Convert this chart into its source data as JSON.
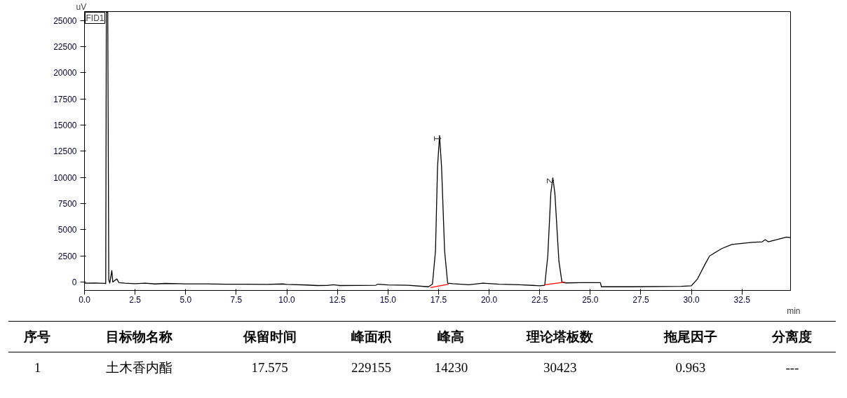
{
  "chart_data": {
    "type": "line",
    "xlabel": "min",
    "ylabel": "uV",
    "xlim": [
      0,
      34.9
    ],
    "ylim": [
      -800,
      25850
    ],
    "xticks": [
      {
        "value": 0,
        "label": "0.0"
      },
      {
        "value": 2.5,
        "label": "2.5"
      },
      {
        "value": 5,
        "label": "5.0"
      },
      {
        "value": 7.5,
        "label": "7.5"
      },
      {
        "value": 10,
        "label": "10.0"
      },
      {
        "value": 12.5,
        "label": "12.5"
      },
      {
        "value": 15,
        "label": "15.0"
      },
      {
        "value": 17.5,
        "label": "17.5"
      },
      {
        "value": 20,
        "label": "20.0"
      },
      {
        "value": 22.5,
        "label": "22.5"
      },
      {
        "value": 25,
        "label": "25.0"
      },
      {
        "value": 27.5,
        "label": "27.5"
      },
      {
        "value": 30,
        "label": "30.0"
      },
      {
        "value": 32.5,
        "label": "32.5"
      }
    ],
    "yticks": [
      0,
      2500,
      5000,
      7500,
      10000,
      12500,
      15000,
      17500,
      20000,
      22500,
      25000
    ],
    "grid": false,
    "series": [
      {
        "color": "#000000",
        "x": [
          0,
          0.5,
          1.0,
          1.05,
          1.08,
          1.15,
          1.2,
          1.25,
          1.35,
          1.4,
          1.6,
          1.7,
          2.0,
          2.5,
          3.0,
          3.5,
          4.0,
          5.0,
          6.0,
          7.0,
          8.0,
          9.0,
          9.8,
          10.0,
          11.0,
          11.5,
          12.0,
          12.3,
          12.6,
          13.5,
          14.4,
          14.5,
          15,
          16,
          17.0,
          17.2,
          17.35,
          17.45,
          17.55,
          17.65,
          17.8,
          17.95,
          18.2,
          19,
          19.7,
          20.5,
          21.5,
          22.5,
          22.75,
          22.9,
          23.05,
          23.15,
          23.25,
          23.45,
          23.6,
          23.8,
          24.5,
          25.5,
          25.55,
          27,
          29.5,
          30.0,
          30.3,
          30.7,
          30.9,
          31.5,
          32.0,
          33.0,
          33.5,
          33.65,
          33.8,
          34.3,
          34.7,
          34.9
        ],
        "values": [
          -100,
          -90,
          -120,
          -150,
          25800,
          25800,
          200,
          -100,
          1100,
          0,
          300,
          -50,
          -100,
          -150,
          -100,
          -180,
          -130,
          -170,
          -170,
          -200,
          -210,
          -220,
          -180,
          -220,
          -280,
          -330,
          -320,
          -250,
          -330,
          -320,
          -300,
          -200,
          -270,
          -300,
          -450,
          -200,
          3000,
          11000,
          14000,
          11000,
          3000,
          -100,
          -150,
          -250,
          -100,
          -200,
          -250,
          -350,
          -300,
          2500,
          8500,
          9950,
          8500,
          2000,
          0,
          -80,
          -50,
          -50,
          -450,
          -450,
          -400,
          -350,
          300,
          1800,
          2500,
          3200,
          3600,
          3800,
          3850,
          4050,
          3850,
          4100,
          4300,
          4250
        ]
      },
      {
        "color": "#ff0000",
        "x": [
          17.1,
          18.0
        ],
        "values": [
          -520,
          -200
        ]
      },
      {
        "color": "#ff0000",
        "x": [
          22.77,
          23.73
        ],
        "values": [
          -260,
          0
        ]
      }
    ],
    "annotations": [
      {
        "text": "1",
        "x": 17.55,
        "y": 14000
      },
      {
        "text": "2",
        "x": 23.15,
        "y": 9950
      },
      "FID1",
      "序号",
      "目标物名称",
      "保留时间",
      "峰面积",
      "峰高",
      "理论塔板数",
      "拖尾因子",
      "分离度",
      "1",
      "土木香内酯",
      "17.575",
      "229155",
      "14230",
      "30423",
      "0.963",
      "---"
    ]
  }
}
